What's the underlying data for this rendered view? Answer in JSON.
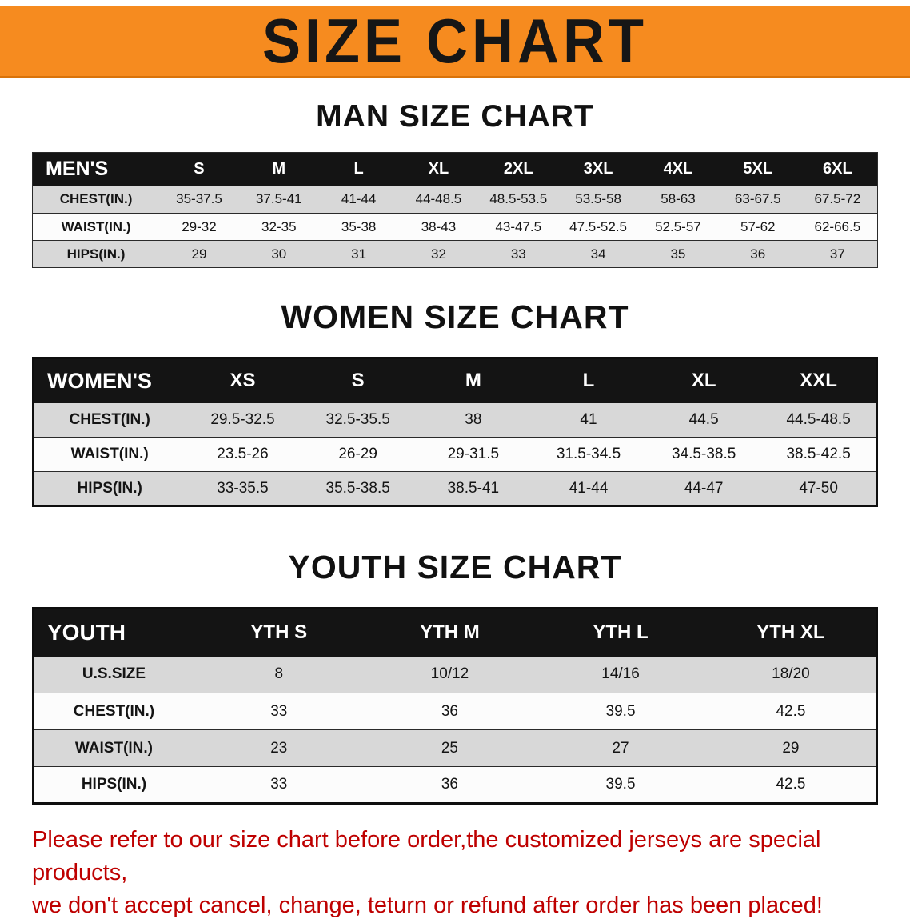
{
  "banner": {
    "title": "SIZE CHART"
  },
  "sections": {
    "men": {
      "heading": "MAN SIZE CHART"
    },
    "women": {
      "heading": "WOMEN SIZE CHART"
    },
    "youth": {
      "heading": "YOUTH SIZE CHART"
    }
  },
  "tables": {
    "men": {
      "header": [
        "MEN'S",
        "S",
        "M",
        "L",
        "XL",
        "2XL",
        "3XL",
        "4XL",
        "5XL",
        "6XL"
      ],
      "rows": [
        [
          "CHEST(IN.)",
          "35-37.5",
          "37.5-41",
          "41-44",
          "44-48.5",
          "48.5-53.5",
          "53.5-58",
          "58-63",
          "63-67.5",
          "67.5-72"
        ],
        [
          "WAIST(IN.)",
          "29-32",
          "32-35",
          "35-38",
          "38-43",
          "43-47.5",
          "47.5-52.5",
          "52.5-57",
          "57-62",
          "62-66.5"
        ],
        [
          "HIPS(IN.)",
          "29",
          "30",
          "31",
          "32",
          "33",
          "34",
          "35",
          "36",
          "37"
        ]
      ]
    },
    "women": {
      "header": [
        "WOMEN'S",
        "XS",
        "S",
        "M",
        "L",
        "XL",
        "XXL"
      ],
      "rows": [
        [
          "CHEST(IN.)",
          "29.5-32.5",
          "32.5-35.5",
          "38",
          "41",
          "44.5",
          "44.5-48.5"
        ],
        [
          "WAIST(IN.)",
          "23.5-26",
          "26-29",
          "29-31.5",
          "31.5-34.5",
          "34.5-38.5",
          "38.5-42.5"
        ],
        [
          "HIPS(IN.)",
          "33-35.5",
          "35.5-38.5",
          "38.5-41",
          "41-44",
          "44-47",
          "47-50"
        ]
      ]
    },
    "youth": {
      "header": [
        "YOUTH",
        "YTH S",
        "YTH M",
        "YTH L",
        "YTH XL"
      ],
      "rows": [
        [
          "U.S.SIZE",
          "8",
          "10/12",
          "14/16",
          "18/20"
        ],
        [
          "CHEST(IN.)",
          "33",
          "36",
          "39.5",
          "42.5"
        ],
        [
          "WAIST(IN.)",
          "23",
          "25",
          "27",
          "29"
        ],
        [
          "HIPS(IN.)",
          "33",
          "36",
          "39.5",
          "42.5"
        ]
      ]
    }
  },
  "footer": {
    "line1": "Please refer to our size chart before order,the customized jerseys are special products,",
    "line2": "we don't accept cancel, change, teturn or refund after order has been placed!"
  },
  "colors": {
    "banner_orange": "#F68B1F",
    "header_black": "#141414",
    "row_gray": "#D8D8D8",
    "footer_red": "#BE0000"
  }
}
